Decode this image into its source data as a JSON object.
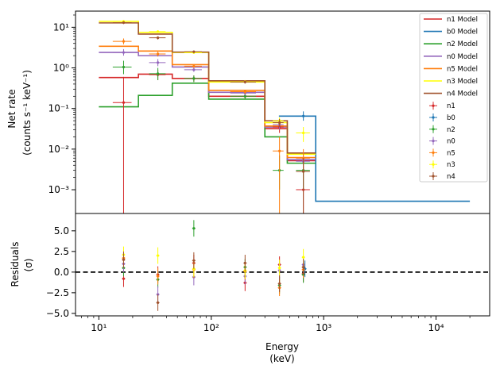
{
  "chart_data": [
    {
      "type": "line",
      "panel": "spectrum",
      "drawstyle": "steps",
      "ylabel_line1": "Net rate",
      "ylabel_line2": "(counts s⁻¹ keV⁻¹)",
      "xscale": "log",
      "yscale": "log",
      "xlim": [
        6.2,
        30000
      ],
      "ylim": [
        0.00026,
        25
      ],
      "x_tick_labels": [
        "10¹",
        "10²",
        "10³",
        "10⁴"
      ],
      "x_tick_values": [
        10,
        100,
        1000,
        10000
      ],
      "y_tick_labels": [
        "10⁻³",
        "10⁻²",
        "10⁻¹",
        "10⁰",
        "10¹"
      ],
      "y_tick_values": [
        0.001,
        0.01,
        0.1,
        1,
        10
      ],
      "bin_edges": [
        10,
        22.5,
        45,
        95,
        300,
        475,
        850
      ],
      "models": [
        {
          "name": "n1 Model",
          "color": "#d62728",
          "values": [
            0.58,
            0.7,
            0.55,
            0.2,
            0.032,
            0.0052
          ]
        },
        {
          "name": "b0 Model",
          "color": "#1f77b4",
          "edges": [
            400,
            850,
            20000
          ],
          "values": [
            0.065,
            0.00052
          ]
        },
        {
          "name": "n2 Model",
          "color": "#2ca02c",
          "values": [
            0.11,
            0.21,
            0.42,
            0.17,
            0.02,
            0.0045
          ]
        },
        {
          "name": "n0 Model",
          "color": "#9467bd",
          "values": [
            2.4,
            2.0,
            1.05,
            0.25,
            0.035,
            0.0055
          ]
        },
        {
          "name": "n5 Model",
          "color": "#ff7f0e",
          "values": [
            3.4,
            2.6,
            1.2,
            0.28,
            0.037,
            0.0062
          ]
        },
        {
          "name": "n3 Model",
          "color": "#ffff00",
          "values": [
            14.0,
            7.5,
            2.4,
            0.45,
            0.045,
            0.0075
          ]
        },
        {
          "name": "n4 Model",
          "color": "#a0522d",
          "values": [
            12.8,
            6.8,
            2.45,
            0.48,
            0.05,
            0.008
          ]
        }
      ],
      "data_series": [
        {
          "name": "n1",
          "color": "#d62728",
          "points": [
            [
              16.6,
              0.14,
              0.00026,
              0.6
            ],
            [
              33.5,
              0.68,
              0.5,
              0.9
            ],
            [
              70,
              0.55,
              0.45,
              0.65
            ],
            [
              200,
              0.2,
              0.17,
              0.23
            ],
            [
              405,
              0.035,
              0.025,
              0.045
            ],
            [
              660,
              0.001,
              0.00026,
              0.003
            ]
          ]
        },
        {
          "name": "b0",
          "color": "#1f77b4",
          "points": [
            [
              660,
              0.065,
              0.05,
              0.085
            ]
          ]
        },
        {
          "name": "n2",
          "color": "#2ca02c",
          "points": [
            [
              16.6,
              1.05,
              0.7,
              1.5
            ],
            [
              33.5,
              0.72,
              0.5,
              1.0
            ],
            [
              70,
              0.55,
              0.45,
              0.65
            ],
            [
              200,
              0.2,
              0.17,
              0.23
            ],
            [
              405,
              0.003,
              0.001,
              0.007
            ],
            [
              660,
              0.003,
              0.001,
              0.006
            ]
          ]
        },
        {
          "name": "n0",
          "color": "#9467bd",
          "points": [
            [
              16.6,
              2.4,
              2.0,
              2.9
            ],
            [
              33.5,
              1.35,
              1.1,
              1.65
            ],
            [
              70,
              0.9,
              0.8,
              1.0
            ],
            [
              200,
              0.24,
              0.21,
              0.27
            ],
            [
              405,
              0.04,
              0.03,
              0.05
            ],
            [
              660,
              0.005,
              0.003,
              0.008
            ]
          ]
        },
        {
          "name": "n5",
          "color": "#ff7f0e",
          "points": [
            [
              16.6,
              4.5,
              3.8,
              5.3
            ],
            [
              33.5,
              2.2,
              1.9,
              2.5
            ],
            [
              70,
              1.1,
              1.0,
              1.2
            ],
            [
              200,
              0.26,
              0.23,
              0.29
            ],
            [
              405,
              0.009,
              0.00026,
              0.02
            ],
            [
              660,
              0.006,
              0.003,
              0.01
            ]
          ]
        },
        {
          "name": "n3",
          "color": "#ffff00",
          "points": [
            [
              16.6,
              14.0,
              13.0,
              15.0
            ],
            [
              33.5,
              7.8,
              7.2,
              8.4
            ],
            [
              70,
              2.4,
              2.2,
              2.6
            ],
            [
              200,
              0.46,
              0.42,
              0.5
            ],
            [
              405,
              0.05,
              0.04,
              0.06
            ],
            [
              660,
              0.025,
              0.015,
              0.035
            ]
          ]
        },
        {
          "name": "n4",
          "color": "#a0522d",
          "points": [
            [
              16.6,
              13.0,
              12.0,
              14.0
            ],
            [
              33.5,
              5.5,
              5.0,
              6.0
            ],
            [
              70,
              2.5,
              2.3,
              2.7
            ],
            [
              200,
              0.45,
              0.41,
              0.49
            ],
            [
              405,
              0.045,
              0.035,
              0.055
            ],
            [
              660,
              0.0028,
              0.00026,
              0.006
            ]
          ]
        }
      ],
      "legend_position": "upper right"
    },
    {
      "type": "scatter",
      "panel": "residuals",
      "xlabel_line1": "Energy",
      "xlabel_line2": "(keV)",
      "ylabel_line1": "Residuals",
      "ylabel_line2": "(σ)",
      "xscale": "log",
      "xlim": [
        6.2,
        30000
      ],
      "ylim": [
        -5.3,
        7.1
      ],
      "y_tick_labels": [
        "−5.0",
        "−2.5",
        "0.0",
        "2.5",
        "5.0"
      ],
      "y_tick_values": [
        -5,
        -2.5,
        0,
        2.5,
        5
      ],
      "zero_line": 0,
      "series": [
        {
          "name": "n1",
          "color": "#d62728",
          "points": [
            [
              16.6,
              -0.8
            ],
            [
              33.5,
              -0.3
            ],
            [
              70,
              1.1
            ],
            [
              200,
              -1.3
            ],
            [
              405,
              0.9
            ],
            [
              660,
              -0.2
            ]
          ]
        },
        {
          "name": "b0",
          "color": "#1f77b4",
          "points": [
            [
              660,
              0.4
            ]
          ]
        },
        {
          "name": "n2",
          "color": "#2ca02c",
          "points": [
            [
              16.6,
              0.5
            ],
            [
              33.5,
              -0.9
            ],
            [
              70,
              5.3
            ],
            [
              200,
              0.6
            ],
            [
              405,
              -1.6
            ],
            [
              660,
              -0.3
            ]
          ]
        },
        {
          "name": "n0",
          "color": "#9467bd",
          "points": [
            [
              16.6,
              1.0
            ],
            [
              33.5,
              -2.7
            ],
            [
              70,
              -0.6
            ],
            [
              200,
              -0.5
            ],
            [
              405,
              0.2
            ],
            [
              660,
              0.9
            ]
          ]
        },
        {
          "name": "n5",
          "color": "#ff7f0e",
          "points": [
            [
              16.6,
              1.7
            ],
            [
              33.5,
              -0.5
            ],
            [
              70,
              0.3
            ],
            [
              200,
              0.1
            ],
            [
              405,
              -1.9
            ],
            [
              660,
              0.3
            ]
          ]
        },
        {
          "name": "n3",
          "color": "#ffff00",
          "points": [
            [
              16.6,
              2.1
            ],
            [
              33.5,
              2.0
            ],
            [
              70,
              0.4
            ],
            [
              200,
              0.2
            ],
            [
              405,
              0.5
            ],
            [
              660,
              1.8
            ]
          ]
        },
        {
          "name": "n4",
          "color": "#a0522d",
          "points": [
            [
              16.6,
              1.5
            ],
            [
              33.5,
              -3.7
            ],
            [
              70,
              1.4
            ],
            [
              200,
              1.1
            ],
            [
              405,
              -1.4
            ],
            [
              660,
              0.6
            ]
          ]
        }
      ]
    }
  ]
}
